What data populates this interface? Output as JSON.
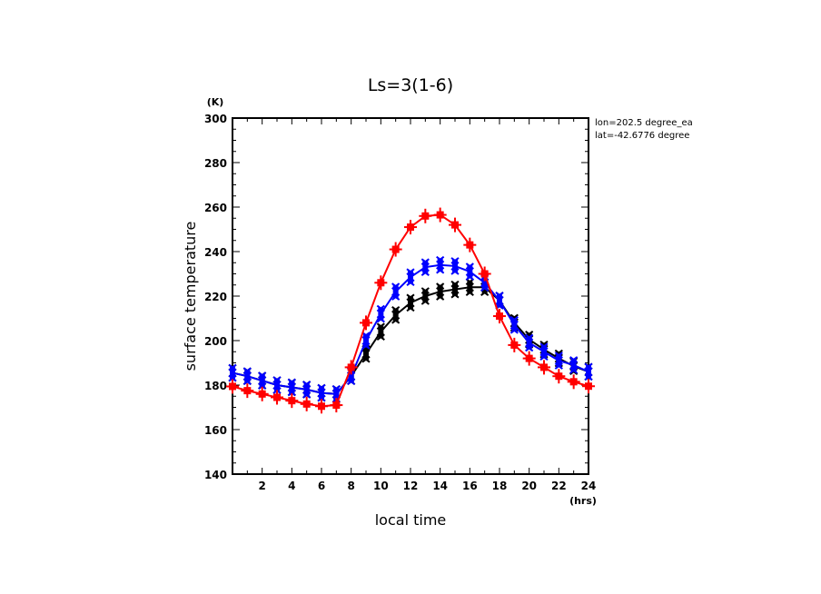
{
  "chart_data": {
    "type": "line",
    "title": "Ls=3(1-6)",
    "xlabel": "local time",
    "ylabel": "surface temperature",
    "x_unit": "(hrs)",
    "y_unit": "(K)",
    "annotations": [
      "lon=202.5 degree_ea",
      "lat=-42.6776 degree"
    ],
    "xlim": [
      0,
      24
    ],
    "ylim": [
      140,
      300
    ],
    "x_ticks": [
      2,
      4,
      6,
      8,
      10,
      12,
      14,
      16,
      18,
      20,
      22,
      24
    ],
    "y_ticks": [
      140,
      160,
      180,
      200,
      220,
      240,
      260,
      280,
      300
    ],
    "grid": false,
    "x": [
      0,
      1,
      2,
      3,
      4,
      5,
      6,
      7,
      8,
      9,
      10,
      11,
      12,
      13,
      14,
      15,
      16,
      17,
      18,
      19,
      20,
      21,
      22,
      23,
      24
    ],
    "series": [
      {
        "name": "black",
        "color": "#000000",
        "marker": "x",
        "values": [
          185.5,
          184,
          182,
          180,
          179,
          178,
          176.5,
          176,
          184,
          194,
          204,
          211.5,
          217,
          220,
          222,
          223,
          224,
          224,
          218,
          208,
          200.5,
          196,
          192,
          188.5,
          186
        ]
      },
      {
        "name": "blue",
        "color": "#0000ff",
        "marker": "x",
        "values": [
          185.5,
          184,
          182,
          180,
          179,
          178,
          176.5,
          176,
          184,
          200,
          212,
          222,
          228.5,
          233,
          234,
          233.5,
          231,
          226,
          218,
          207,
          199,
          195,
          191,
          189,
          186
        ]
      },
      {
        "name": "red",
        "color": "#ff0000",
        "marker": "+",
        "values": [
          179.4,
          177.5,
          176,
          174.5,
          173,
          171.5,
          170.5,
          171,
          188,
          208,
          226,
          241,
          251,
          256,
          256.5,
          252,
          243,
          230,
          211,
          198,
          192,
          188,
          184,
          181.5,
          179.5
        ]
      }
    ]
  }
}
